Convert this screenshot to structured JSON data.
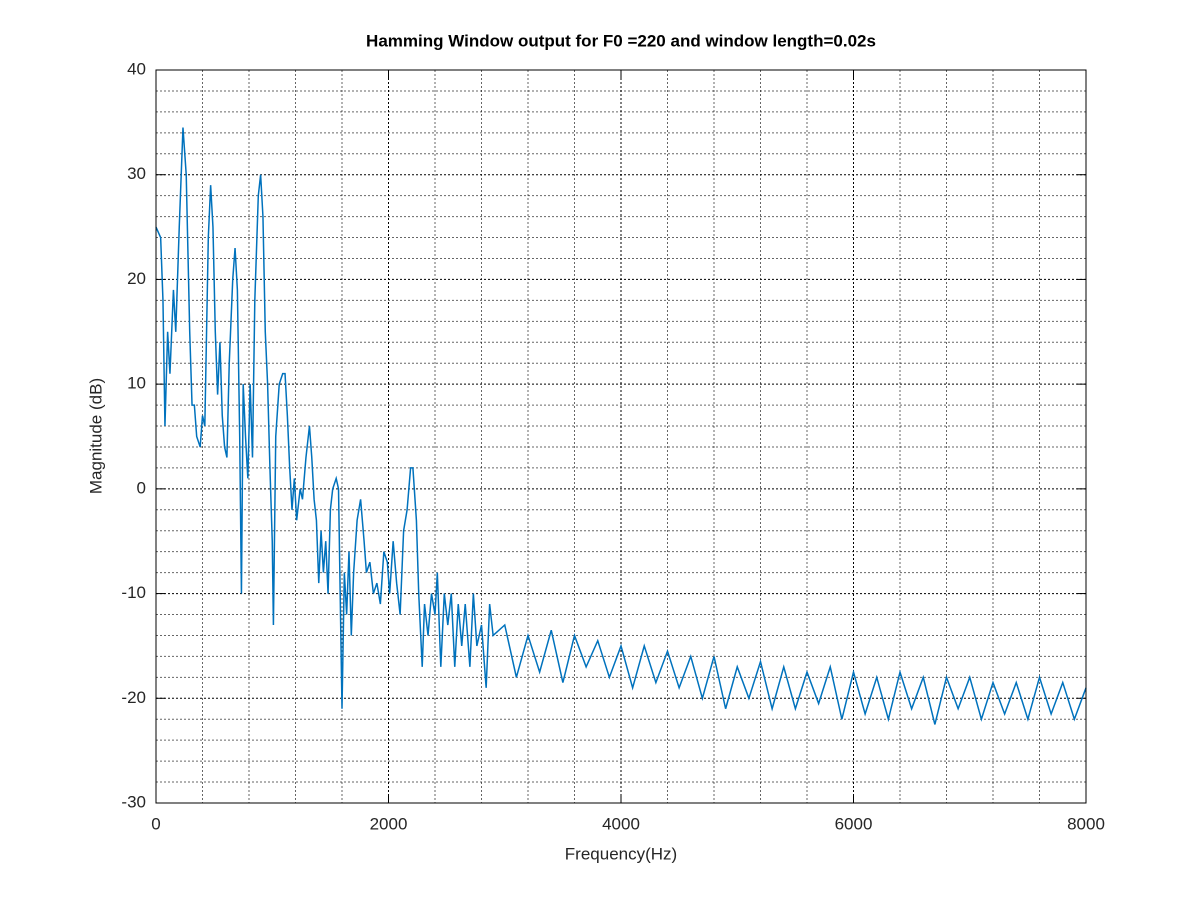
{
  "chart_data": {
    "type": "line",
    "title": "Hamming Window output for F0 =220 and window length=0.02s",
    "xlabel": "Frequency(Hz)",
    "ylabel": "Magnitude (dB)",
    "color": "#0072bd",
    "grid": true,
    "xlim": [
      0,
      8000
    ],
    "ylim": [
      -30,
      40
    ],
    "xticks": [
      0,
      2000,
      4000,
      6000,
      8000
    ],
    "yticks": [
      -30,
      -20,
      -10,
      0,
      10,
      20,
      30,
      40
    ],
    "xminorticks": [
      400,
      800,
      1200,
      1600,
      2400,
      2800,
      3200,
      3600,
      4400,
      4800,
      5200,
      5600,
      6400,
      6800,
      7200,
      7600
    ],
    "yminorticks": [
      -28,
      -26,
      -24,
      -22,
      -18,
      -16,
      -14,
      -12,
      -8,
      -6,
      -4,
      -2,
      2,
      4,
      6,
      8,
      12,
      14,
      16,
      18,
      22,
      24,
      26,
      28,
      32,
      34,
      36,
      38
    ],
    "x": [
      0,
      40,
      60,
      77,
      100,
      120,
      150,
      170,
      200,
      232,
      260,
      290,
      310,
      330,
      350,
      380,
      400,
      420,
      450,
      470,
      490,
      510,
      530,
      550,
      570,
      590,
      610,
      630,
      660,
      680,
      700,
      720,
      735,
      750,
      770,
      790,
      810,
      830,
      850,
      880,
      900,
      920,
      940,
      960,
      980,
      1000,
      1010,
      1030,
      1060,
      1090,
      1110,
      1130,
      1150,
      1170,
      1190,
      1210,
      1240,
      1260,
      1290,
      1320,
      1340,
      1360,
      1380,
      1400,
      1420,
      1440,
      1460,
      1480,
      1500,
      1520,
      1550,
      1570,
      1580,
      1600,
      1620,
      1640,
      1660,
      1680,
      1700,
      1730,
      1760,
      1790,
      1810,
      1840,
      1870,
      1900,
      1930,
      1960,
      1990,
      2010,
      2040,
      2070,
      2100,
      2130,
      2160,
      2190,
      2210,
      2240,
      2260,
      2290,
      2310,
      2340,
      2370,
      2400,
      2420,
      2450,
      2480,
      2510,
      2540,
      2570,
      2600,
      2630,
      2660,
      2700,
      2730,
      2760,
      2800,
      2840,
      2870,
      2900,
      3000,
      3100,
      3200,
      3300,
      3400,
      3500,
      3600,
      3700,
      3800,
      3900,
      4000,
      4100,
      4200,
      4300,
      4400,
      4500,
      4600,
      4700,
      4800,
      4900,
      5000,
      5100,
      5200,
      5300,
      5400,
      5500,
      5600,
      5700,
      5800,
      5900,
      6000,
      6100,
      6200,
      6300,
      6400,
      6500,
      6600,
      6700,
      6800,
      6900,
      7000,
      7100,
      7200,
      7300,
      7400,
      7500,
      7600,
      7700,
      7800,
      7900,
      8000
    ],
    "values": [
      25,
      24,
      18,
      6,
      15,
      11,
      19,
      15,
      25,
      34.5,
      30,
      15,
      8,
      8,
      5,
      4,
      7,
      6,
      24,
      29,
      25,
      15,
      9,
      14,
      7,
      4,
      3,
      12,
      20,
      23,
      19,
      5,
      -10,
      10,
      5,
      1,
      10,
      3,
      18,
      28,
      30,
      26,
      15,
      10,
      2,
      -5,
      -13,
      5,
      10,
      11,
      11,
      7,
      2,
      -2,
      1,
      -3,
      0,
      -1,
      3,
      6,
      3,
      -1,
      -3,
      -9,
      -4,
      -8,
      -5,
      -10,
      -2,
      0,
      1,
      0,
      -7,
      -21,
      -8,
      -12,
      -6,
      -14,
      -8,
      -3,
      -1,
      -5,
      -8,
      -7,
      -10,
      -9,
      -11,
      -6,
      -7,
      -10,
      -5,
      -9,
      -12,
      -4,
      -2,
      2,
      2,
      -3,
      -10,
      -17,
      -11,
      -14,
      -10,
      -12,
      -8,
      -17,
      -10,
      -13,
      -10,
      -17,
      -11,
      -15,
      -11,
      -17,
      -10,
      -15,
      -13,
      -19,
      -11,
      -14,
      -13,
      -18,
      -14,
      -17.5,
      -13.5,
      -18.5,
      -14,
      -17,
      -14.5,
      -18,
      -15,
      -19,
      -15,
      -18.5,
      -15.5,
      -19,
      -16,
      -20,
      -16,
      -21,
      -17,
      -20,
      -16.5,
      -21,
      -17,
      -21,
      -17.5,
      -20.5,
      -17,
      -22,
      -17.5,
      -21.5,
      -18,
      -22,
      -17.5,
      -21,
      -18,
      -22.5,
      -18,
      -21,
      -18,
      -22,
      -18.5,
      -21.5,
      -18.5,
      -22,
      -18,
      -21.5,
      -18.5,
      -22,
      -19
    ]
  }
}
